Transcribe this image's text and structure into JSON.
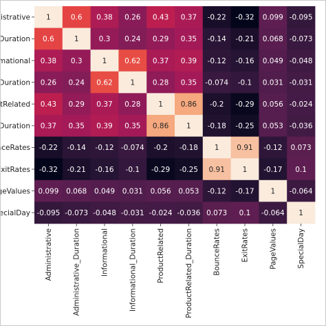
{
  "chart_data": {
    "type": "heatmap",
    "row_labels": [
      "inistrative",
      "_Duration",
      "ormational",
      "l_Duration",
      "ductRelated",
      "l_Duration",
      "ounceRates",
      "ExitRates",
      "ageValues",
      "pecialDay"
    ],
    "col_labels": [
      "Administrative",
      "Administrative_Duration",
      "Informational",
      "Informational_Duration",
      "ProductRelated",
      "ProductRelated_Duration",
      "BounceRates",
      "ExitRates",
      "PageValues",
      "SpecialDay"
    ],
    "values": [
      [
        1,
        0.6,
        0.38,
        0.26,
        0.43,
        0.37,
        -0.22,
        -0.32,
        0.099,
        -0.095
      ],
      [
        0.6,
        1,
        0.3,
        0.24,
        0.29,
        0.35,
        -0.14,
        -0.21,
        0.068,
        -0.073
      ],
      [
        0.38,
        0.3,
        1,
        0.62,
        0.37,
        0.39,
        -0.12,
        -0.16,
        0.049,
        -0.048
      ],
      [
        0.26,
        0.24,
        0.62,
        1,
        0.28,
        0.35,
        -0.074,
        -0.1,
        0.031,
        -0.031
      ],
      [
        0.43,
        0.29,
        0.37,
        0.28,
        1,
        0.86,
        -0.2,
        -0.29,
        0.056,
        -0.024
      ],
      [
        0.37,
        0.35,
        0.39,
        0.35,
        0.86,
        1,
        -0.18,
        -0.25,
        0.053,
        -0.036
      ],
      [
        -0.22,
        -0.14,
        -0.12,
        -0.074,
        -0.2,
        -0.18,
        1,
        0.91,
        -0.12,
        0.073
      ],
      [
        -0.32,
        -0.21,
        -0.16,
        -0.1,
        -0.29,
        -0.25,
        0.91,
        1,
        -0.17,
        0.1
      ],
      [
        0.099,
        0.068,
        0.049,
        0.031,
        0.056,
        0.053,
        -0.12,
        -0.17,
        1,
        -0.064
      ],
      [
        -0.095,
        -0.073,
        -0.048,
        -0.031,
        -0.024,
        -0.036,
        0.073,
        0.1,
        -0.064,
        1
      ]
    ],
    "cell_labels": [
      [
        "1",
        "0.6",
        "0.38",
        "0.26",
        "0.43",
        "0.37",
        "-0.22",
        "-0.32",
        "0.099",
        "-0.095"
      ],
      [
        "0.6",
        "1",
        "0.3",
        "0.24",
        "0.29",
        "0.35",
        "-0.14",
        "-0.21",
        "0.068",
        "-0.073"
      ],
      [
        "0.38",
        "0.3",
        "1",
        "0.62",
        "0.37",
        "0.39",
        "-0.12",
        "-0.16",
        "0.049",
        "-0.048"
      ],
      [
        "0.26",
        "0.24",
        "0.62",
        "1",
        "0.28",
        "0.35",
        "-0.074",
        "-0.1",
        "0.031",
        "-0.031"
      ],
      [
        "0.43",
        "0.29",
        "0.37",
        "0.28",
        "1",
        "0.86",
        "-0.2",
        "-0.29",
        "0.056",
        "-0.024"
      ],
      [
        "0.37",
        "0.35",
        "0.39",
        "0.35",
        "0.86",
        "1",
        "-0.18",
        "-0.25",
        "0.053",
        "-0.036"
      ],
      [
        "-0.22",
        "-0.14",
        "-0.12",
        "-0.074",
        "-0.2",
        "-0.18",
        "1",
        "0.91",
        "-0.12",
        "0.073"
      ],
      [
        "-0.32",
        "-0.21",
        "-0.16",
        "-0.1",
        "-0.29",
        "-0.25",
        "0.91",
        "1",
        "-0.17",
        "0.1"
      ],
      [
        "0.099",
        "0.068",
        "0.049",
        "0.031",
        "0.056",
        "0.053",
        "-0.12",
        "-0.17",
        "1",
        "-0.064"
      ],
      [
        "-0.095",
        "-0.073",
        "-0.048",
        "-0.031",
        "-0.024",
        "-0.036",
        "0.073",
        "0.1",
        "-0.064",
        "1"
      ]
    ],
    "colorbar_ticks": [],
    "vmin": -0.32,
    "vmax": 1,
    "colormap": "rocket",
    "grid": false,
    "legend": "colorbar, right, mostly cropped",
    "title": "",
    "xlabel": "",
    "ylabel": ""
  }
}
